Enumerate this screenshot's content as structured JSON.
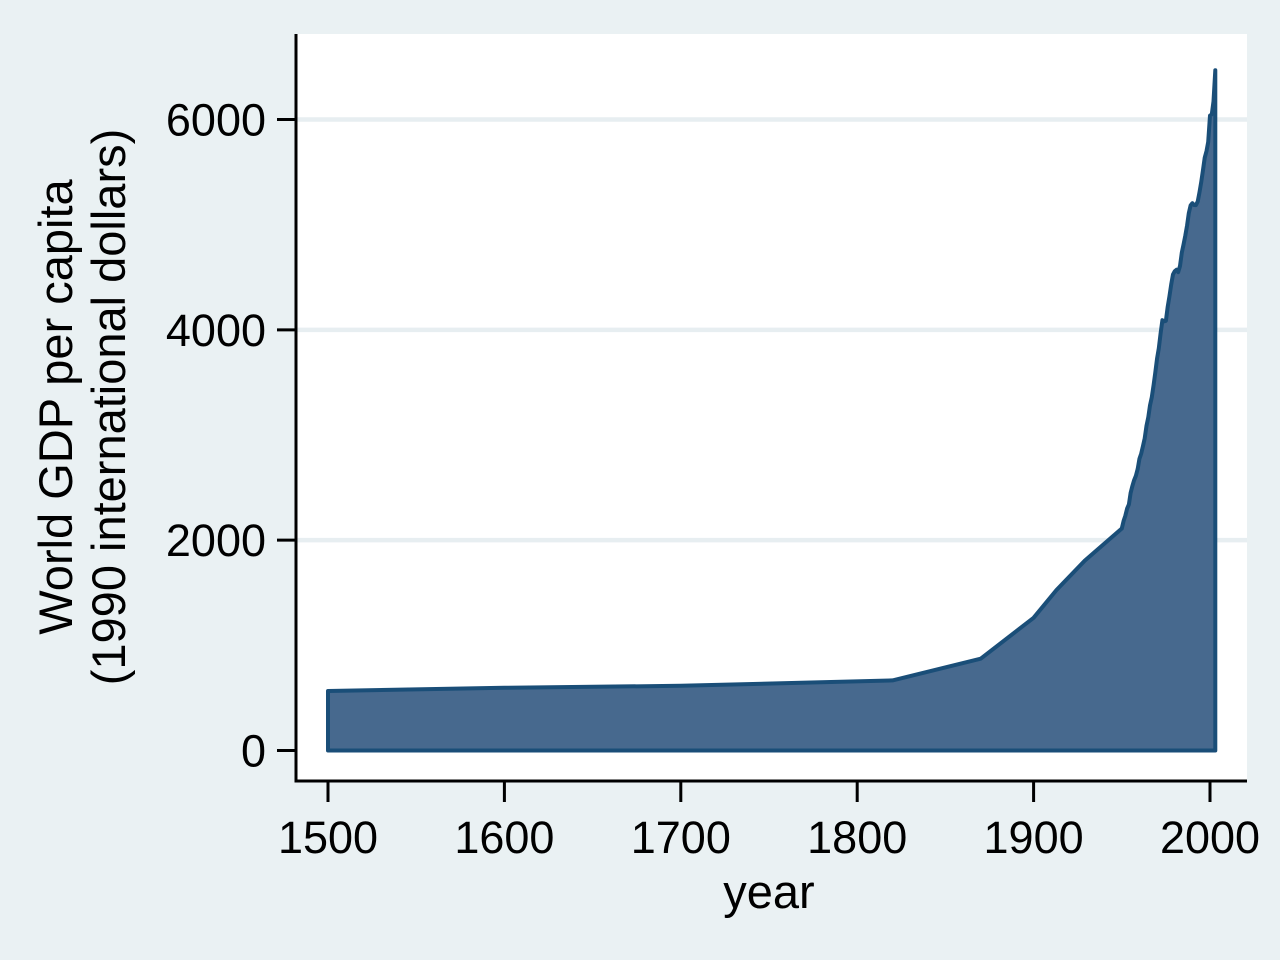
{
  "chart_data": {
    "type": "area",
    "title": "",
    "xlabel": "year",
    "ylabel": "World GDP per capita (1990 international dollars)",
    "ylabel_line1": "World GDP per capita",
    "ylabel_line2": "(1990 international dollars)",
    "x_ticks": [
      1500,
      1600,
      1700,
      1800,
      1900,
      2000
    ],
    "y_ticks": [
      0,
      2000,
      4000,
      6000
    ],
    "grid_values": [
      2000,
      4000,
      6000
    ],
    "xlim": [
      1500,
      2003
    ],
    "ylim": [
      0,
      6800
    ],
    "grid": "horizontal-only",
    "legend": "none",
    "series": [
      {
        "name": "World GDP per capita (1990 international dollars)",
        "x": [
          1500,
          1600,
          1700,
          1820,
          1870,
          1900,
          1913,
          1929,
          1950,
          1951,
          1952,
          1953,
          1954,
          1955,
          1956,
          1957,
          1958,
          1959,
          1960,
          1961,
          1962,
          1963,
          1964,
          1965,
          1966,
          1967,
          1968,
          1969,
          1970,
          1971,
          1972,
          1973,
          1974,
          1975,
          1976,
          1977,
          1978,
          1979,
          1980,
          1981,
          1982,
          1983,
          1984,
          1985,
          1986,
          1987,
          1988,
          1989,
          1990,
          1991,
          1992,
          1993,
          1994,
          1995,
          1996,
          1997,
          1998,
          1999,
          2000,
          2001,
          2002,
          2003
        ],
        "y": [
          566,
          596,
          615,
          667,
          873,
          1262,
          1526,
          1806,
          2111,
          2183,
          2231,
          2300,
          2340,
          2448,
          2516,
          2570,
          2613,
          2678,
          2773,
          2823,
          2896,
          2969,
          3087,
          3169,
          3281,
          3359,
          3474,
          3594,
          3729,
          3823,
          3966,
          4091,
          4080,
          4086,
          4219,
          4316,
          4431,
          4527,
          4556,
          4571,
          4549,
          4607,
          4733,
          4809,
          4896,
          4994,
          5109,
          5183,
          5204,
          5187,
          5186,
          5219,
          5303,
          5404,
          5513,
          5636,
          5699,
          5786,
          6038,
          6049,
          6172,
          6469
        ]
      }
    ],
    "colors": {
      "area_fill": "#47698e",
      "area_stroke": "#1a4e78",
      "figure_background": "#eaf1f3",
      "plot_background": "#ffffff",
      "gridline": "#e7eef1",
      "axis_line": "#000000",
      "text": "#000000"
    }
  }
}
